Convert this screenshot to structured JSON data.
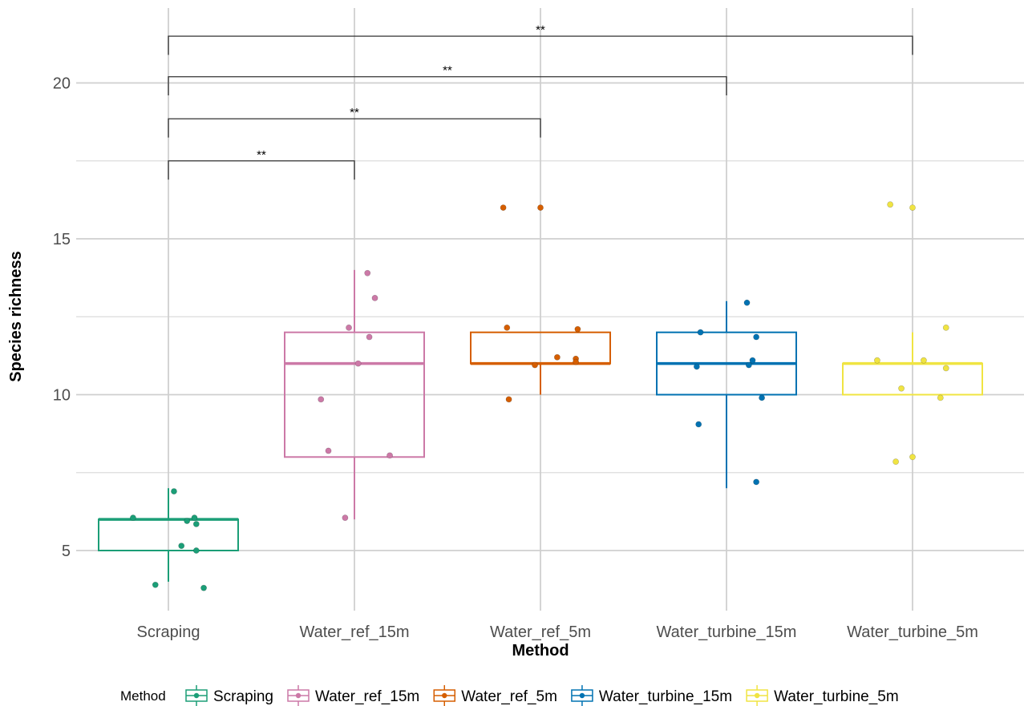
{
  "chart_data": {
    "type": "box",
    "xlabel": "Method",
    "ylabel": "Species richness",
    "ylim": [
      3,
      22
    ],
    "yticks": [
      5,
      10,
      15,
      20
    ],
    "grid": true,
    "legend": {
      "title": "Method",
      "position": "bottom"
    },
    "categories": [
      "Scraping",
      "Water_ref_15m",
      "Water_ref_5m",
      "Water_turbine_15m",
      "Water_turbine_5m"
    ],
    "colors": [
      "#1b9e77",
      "#cc79a7",
      "#d55e00",
      "#0072b2",
      "#f0e442"
    ],
    "boxes": [
      {
        "category": "Scraping",
        "whisker_low": 4,
        "q1": 5,
        "median": 6,
        "q3": 6,
        "whisker_high": 7
      },
      {
        "category": "Water_ref_15m",
        "whisker_low": 6,
        "q1": 8,
        "median": 11,
        "q3": 12,
        "whisker_high": 14
      },
      {
        "category": "Water_ref_5m",
        "whisker_low": 10,
        "q1": 11,
        "median": 11,
        "q3": 12,
        "whisker_high": 12
      },
      {
        "category": "Water_turbine_15m",
        "whisker_low": 7,
        "q1": 10,
        "median": 11,
        "q3": 12,
        "whisker_high": 13
      },
      {
        "category": "Water_turbine_5m",
        "whisker_low": 10,
        "q1": 10,
        "median": 11,
        "q3": 11,
        "whisker_high": 12
      }
    ],
    "points": [
      {
        "category": "Scraping",
        "values": [
          6.9,
          6.05,
          5.95,
          6.05,
          5.85,
          5.15,
          5.0,
          3.9,
          3.8
        ],
        "jitter": [
          0.03,
          -0.19,
          0.1,
          0.14,
          0.15,
          0.07,
          0.15,
          -0.07,
          0.19
        ]
      },
      {
        "category": "Water_ref_15m",
        "values": [
          13.9,
          13.1,
          12.15,
          11.85,
          11.0,
          9.85,
          8.2,
          8.05,
          6.05
        ],
        "jitter": [
          0.07,
          0.11,
          -0.03,
          0.08,
          0.02,
          -0.18,
          -0.14,
          0.19,
          -0.05
        ]
      },
      {
        "category": "Water_ref_5m",
        "values": [
          16.0,
          16.0,
          12.15,
          12.1,
          11.2,
          11.15,
          11.05,
          10.95,
          9.85
        ],
        "jitter": [
          -0.2,
          0.0,
          -0.18,
          0.2,
          0.09,
          0.19,
          0.19,
          -0.03,
          -0.17
        ]
      },
      {
        "category": "Water_turbine_15m",
        "values": [
          12.95,
          12.0,
          11.85,
          11.1,
          10.95,
          10.9,
          9.9,
          9.05,
          7.2
        ],
        "jitter": [
          0.11,
          -0.14,
          0.16,
          0.14,
          0.12,
          -0.16,
          0.19,
          -0.15,
          0.16
        ]
      },
      {
        "category": "Water_turbine_5m",
        "values": [
          16.1,
          16.0,
          12.15,
          11.1,
          11.1,
          10.85,
          10.2,
          9.9,
          8.0,
          7.85
        ],
        "jitter": [
          -0.12,
          0.0,
          0.18,
          -0.19,
          0.06,
          0.18,
          -0.06,
          0.15,
          0.0,
          -0.09
        ]
      }
    ],
    "comparisons": [
      {
        "from": "Scraping",
        "to": "Water_ref_15m",
        "y": 17.5,
        "label": "**"
      },
      {
        "from": "Scraping",
        "to": "Water_ref_5m",
        "y": 18.85,
        "label": "**"
      },
      {
        "from": "Scraping",
        "to": "Water_turbine_15m",
        "y": 20.2,
        "label": "**"
      },
      {
        "from": "Scraping",
        "to": "Water_turbine_5m",
        "y": 21.5,
        "label": "**"
      }
    ]
  }
}
